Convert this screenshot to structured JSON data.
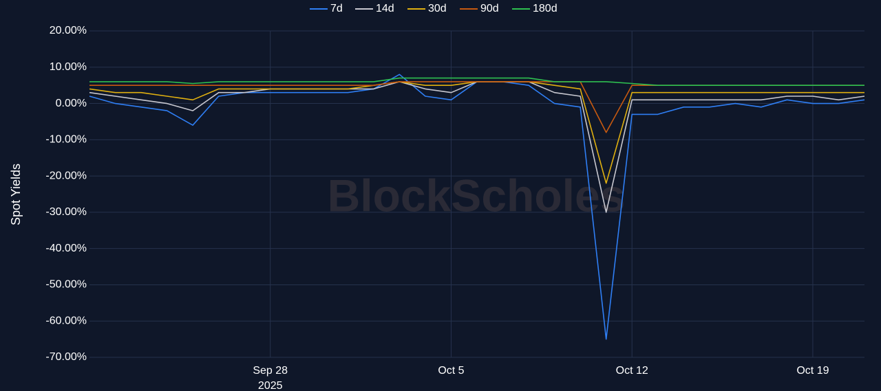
{
  "chart_data": {
    "type": "line",
    "y_label": "Spot Yields",
    "watermark": "BlockScholes",
    "x": [
      "2025-09-21",
      "2025-09-22",
      "2025-09-23",
      "2025-09-24",
      "2025-09-25",
      "2025-09-26",
      "2025-09-27",
      "2025-09-28",
      "2025-09-29",
      "2025-09-30",
      "2025-10-01",
      "2025-10-02",
      "2025-10-03",
      "2025-10-04",
      "2025-10-05",
      "2025-10-06",
      "2025-10-07",
      "2025-10-08",
      "2025-10-09",
      "2025-10-10",
      "2025-10-11",
      "2025-10-12",
      "2025-10-13",
      "2025-10-14",
      "2025-10-15",
      "2025-10-16",
      "2025-10-17",
      "2025-10-18",
      "2025-10-19",
      "2025-10-20",
      "2025-10-21"
    ],
    "series": [
      {
        "name": "7d",
        "color": "#2f7ff5",
        "values": [
          2,
          0,
          -1,
          -2,
          -6,
          2,
          3,
          3,
          3,
          3,
          3,
          4,
          8,
          2,
          1,
          6,
          6,
          5,
          0,
          -1,
          -65,
          -3,
          -3,
          -1,
          -1,
          0,
          -1,
          1,
          0,
          0,
          1
        ]
      },
      {
        "name": "14d",
        "color": "#c8c8d0",
        "values": [
          3,
          2,
          1,
          0,
          -2,
          3,
          3,
          4,
          4,
          4,
          4,
          4,
          6,
          4,
          3,
          6,
          6,
          6,
          3,
          2,
          -30,
          1,
          1,
          1,
          1,
          1,
          1,
          2,
          2,
          1,
          2
        ]
      },
      {
        "name": "30d",
        "color": "#e0b010",
        "values": [
          4,
          3,
          3,
          2,
          1,
          4,
          4,
          4,
          4,
          4,
          4,
          5,
          6,
          5,
          5,
          6,
          6,
          6,
          5,
          4,
          -22,
          3,
          3,
          3,
          3,
          3,
          3,
          3,
          3,
          3,
          3
        ]
      },
      {
        "name": "90d",
        "color": "#c85a10",
        "values": [
          5,
          5,
          5,
          5,
          5,
          5,
          5,
          5,
          5,
          5,
          5,
          5,
          6,
          6,
          6,
          6,
          6,
          6,
          6,
          6,
          -8,
          5,
          5,
          5,
          5,
          5,
          5,
          5,
          5,
          5,
          5
        ]
      },
      {
        "name": "180d",
        "color": "#2ec050",
        "values": [
          6,
          6,
          6,
          6,
          5.5,
          6,
          6,
          6,
          6,
          6,
          6,
          6,
          7,
          7,
          7,
          7,
          7,
          7,
          6,
          6,
          6,
          5.5,
          5,
          5,
          5,
          5,
          5,
          5,
          5,
          5,
          5
        ]
      }
    ],
    "xlim": [
      "2025-09-21",
      "2025-10-21"
    ],
    "xticks": [
      {
        "value": "2025-09-28",
        "label": "Sep 28"
      },
      {
        "value": "2025-10-05",
        "label": "Oct 5"
      },
      {
        "value": "2025-10-12",
        "label": "Oct 12"
      },
      {
        "value": "2025-10-19",
        "label": "Oct 19"
      }
    ],
    "x_tick_year": "2025",
    "ylim": [
      -70,
      20
    ],
    "yticks": [
      {
        "value": 20,
        "label": "20.00%"
      },
      {
        "value": 10,
        "label": "10.00%"
      },
      {
        "value": 0,
        "label": "0.00%"
      },
      {
        "value": -10,
        "label": "-10.00%"
      },
      {
        "value": -20,
        "label": "-20.00%"
      },
      {
        "value": -30,
        "label": "-30.00%"
      },
      {
        "value": -40,
        "label": "-40.00%"
      },
      {
        "value": -50,
        "label": "-50.00%"
      },
      {
        "value": -60,
        "label": "-60.00%"
      },
      {
        "value": -70,
        "label": "-70.00%"
      }
    ],
    "grid": true,
    "legend": "top"
  }
}
